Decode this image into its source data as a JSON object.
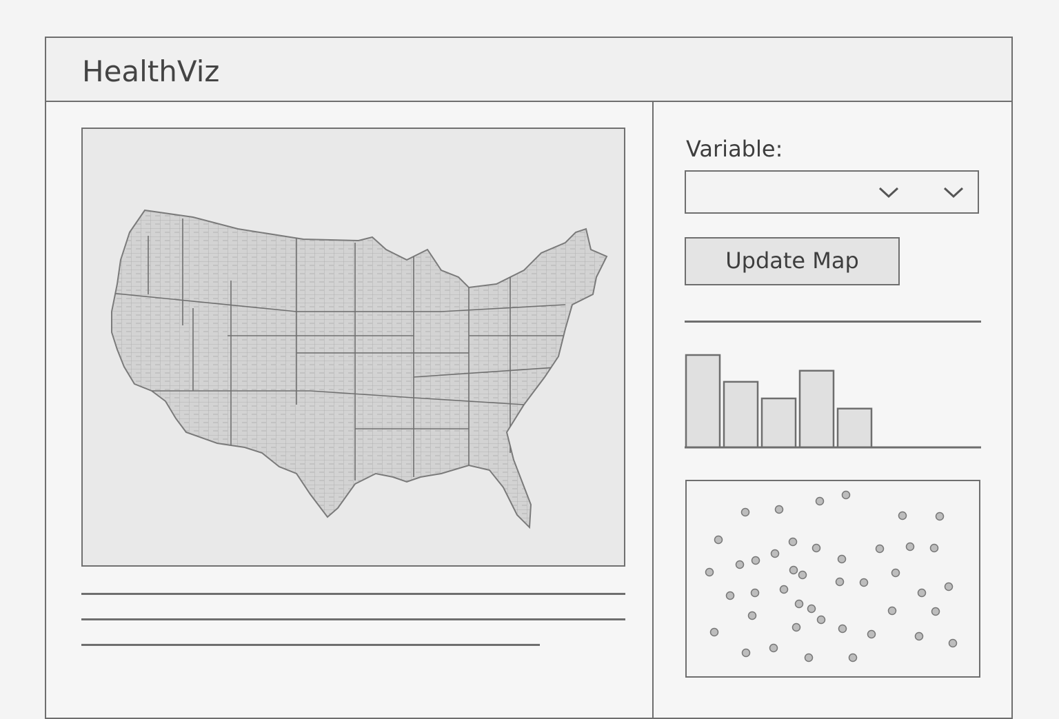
{
  "app": {
    "title": "HealthViz"
  },
  "controls": {
    "variable_label": "Variable:",
    "variable_selected": "",
    "update_button_label": "Update Map"
  },
  "icons": {
    "dropdown": "chevron-down-icon"
  },
  "colors": {
    "border": "#6e6e6e",
    "map_fill": "#cfcfcf",
    "bar_fill": "#e0e0e0",
    "point_fill": "#bdbdbd"
  },
  "histogram": {
    "type": "bar",
    "values": [
      100,
      71,
      53,
      83,
      42
    ]
  },
  "scatter": {
    "type": "scatter",
    "points": [
      [
        85,
        45
      ],
      [
        134,
        41
      ],
      [
        193,
        29
      ],
      [
        231,
        20
      ],
      [
        313,
        50
      ],
      [
        367,
        51
      ],
      [
        46,
        85
      ],
      [
        154,
        88
      ],
      [
        188,
        97
      ],
      [
        225,
        113
      ],
      [
        280,
        98
      ],
      [
        324,
        95
      ],
      [
        359,
        97
      ],
      [
        77,
        121
      ],
      [
        100,
        115
      ],
      [
        128,
        105
      ],
      [
        155,
        129
      ],
      [
        168,
        136
      ],
      [
        222,
        146
      ],
      [
        257,
        147
      ],
      [
        303,
        133
      ],
      [
        33,
        132
      ],
      [
        63,
        166
      ],
      [
        99,
        162
      ],
      [
        141,
        157
      ],
      [
        163,
        178
      ],
      [
        181,
        185
      ],
      [
        341,
        162
      ],
      [
        380,
        153
      ],
      [
        95,
        195
      ],
      [
        159,
        212
      ],
      [
        195,
        201
      ],
      [
        226,
        214
      ],
      [
        268,
        222
      ],
      [
        298,
        188
      ],
      [
        361,
        189
      ],
      [
        40,
        219
      ],
      [
        86,
        249
      ],
      [
        126,
        242
      ],
      [
        177,
        256
      ],
      [
        241,
        256
      ],
      [
        337,
        225
      ],
      [
        386,
        235
      ]
    ]
  }
}
